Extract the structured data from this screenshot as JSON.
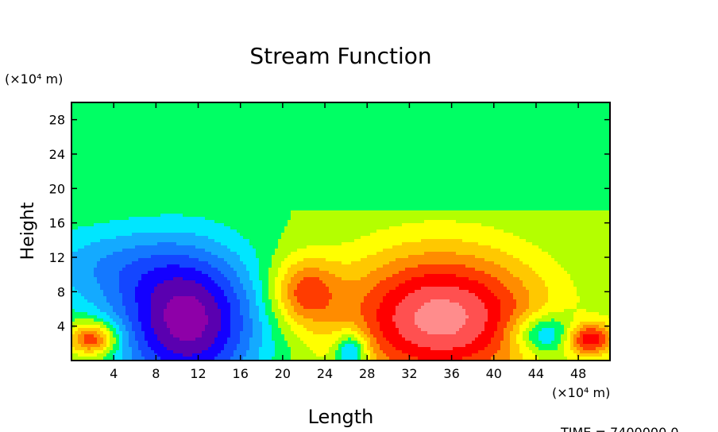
{
  "chart_data": {
    "type": "heatmap",
    "title": "Stream Function",
    "xlabel": "Length",
    "ylabel": "Height",
    "x_unit": "(×10⁴ m)",
    "y_unit": "(×10⁴ m)",
    "xlim": [
      0,
      51
    ],
    "ylim": [
      0,
      30
    ],
    "x_ticks": [
      4,
      8,
      12,
      16,
      20,
      24,
      28,
      32,
      36,
      40,
      44,
      48
    ],
    "y_ticks": [
      4,
      8,
      12,
      16,
      20,
      24,
      28
    ],
    "footer": "TIME = 7400000.0",
    "colormap": [
      "#8e00a8",
      "#5a00b0",
      "#1400ff",
      "#1446ff",
      "#1478ff",
      "#14aaff",
      "#00e6ff",
      "#00ff64",
      "#b4ff00",
      "#ffff00",
      "#ffc800",
      "#ff8c00",
      "#ff3c00",
      "#ff0000",
      "#ff5050",
      "#ff8c8c"
    ],
    "background_level": 0.5,
    "features": [
      {
        "sign": "negative",
        "center": [
          11,
          4.5
        ],
        "extent": [
          8.5,
          10.5
        ],
        "peak": -1.0
      },
      {
        "sign": "negative",
        "center": [
          3,
          11.0
        ],
        "extent": [
          10,
          6
        ],
        "peak": -0.3
      },
      {
        "sign": "negative",
        "center": [
          26.5,
          1.0
        ],
        "extent": [
          2.0,
          3.0
        ],
        "peak": -0.6
      },
      {
        "sign": "negative",
        "center": [
          45,
          3.0
        ],
        "extent": [
          4.0,
          3.0
        ],
        "peak": -0.55
      },
      {
        "sign": "positive",
        "center": [
          35,
          5.0
        ],
        "extent": [
          12,
          10
        ],
        "peak": 1.0
      },
      {
        "sign": "positive",
        "center": [
          22,
          8.0
        ],
        "extent": [
          4,
          5
        ],
        "peak": 0.55
      },
      {
        "sign": "positive",
        "center": [
          2,
          2.5
        ],
        "extent": [
          3,
          2.5
        ],
        "peak": 0.75
      },
      {
        "sign": "positive",
        "center": [
          49,
          2.5
        ],
        "extent": [
          3,
          2.5
        ],
        "peak": 0.75
      }
    ]
  }
}
